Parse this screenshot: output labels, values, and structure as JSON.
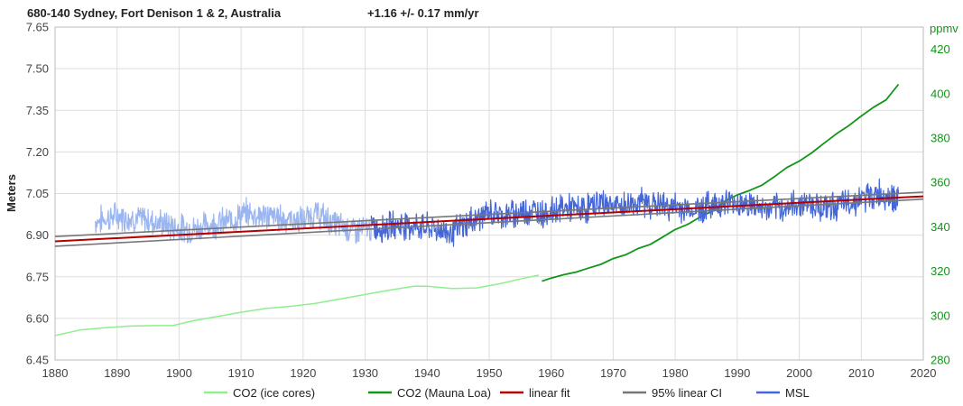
{
  "chart_data": {
    "type": "line",
    "title": "680-140 Sydney, Fort Denison 1 & 2, Australia",
    "trend_text": "+1.16 +/- 0.17 mm/yr",
    "ylabel": "Meters",
    "ylabel_right": "ppmv",
    "xlim": [
      1880,
      2020
    ],
    "ylim": [
      6.45,
      7.65
    ],
    "ylim_right": [
      280,
      430
    ],
    "x_ticks": [
      "1880",
      "1890",
      "1900",
      "1910",
      "1920",
      "1930",
      "1940",
      "1950",
      "1960",
      "1970",
      "1980",
      "1990",
      "2000",
      "2010",
      "2020"
    ],
    "y_ticks": [
      "6.45",
      "6.60",
      "6.75",
      "6.90",
      "7.05",
      "7.20",
      "7.35",
      "7.50",
      "7.65"
    ],
    "y_ticks_right": [
      "280",
      "300",
      "320",
      "340",
      "360",
      "380",
      "400",
      "420"
    ],
    "grid": true,
    "legend_position": "bottom",
    "colors": {
      "co2_ice": "#90ee90",
      "co2_mauna": "#109618",
      "linear_fit": "#b40000",
      "ci": "#777777",
      "msl_early": "#9ab5ef",
      "msl_late": "#4466d6"
    },
    "legend": [
      {
        "label": "CO2 (ice cores)",
        "color": "#90ee90"
      },
      {
        "label": "CO2 (Mauna Loa)",
        "color": "#109618"
      },
      {
        "label": "linear fit",
        "color": "#b40000"
      },
      {
        "label": "95% linear CI",
        "color": "#777777"
      },
      {
        "label": "MSL",
        "color": "#4466d6"
      }
    ],
    "series": [
      {
        "name": "CO2 (ice cores)",
        "axis": "right",
        "x": [
          1880,
          1884,
          1888,
          1892,
          1896,
          1899,
          1902,
          1906,
          1910,
          1914,
          1918,
          1922,
          1926,
          1930,
          1934,
          1938,
          1940,
          1944,
          1948,
          1952,
          1955,
          1958
        ],
        "y": [
          291,
          293.5,
          294.5,
          295.3,
          295.5,
          295.5,
          297.5,
          299.5,
          301.5,
          303.2,
          304.2,
          305.5,
          307.5,
          309.5,
          311.5,
          313.3,
          313.2,
          312.2,
          312.5,
          314.5,
          316.5,
          318.2
        ]
      },
      {
        "name": "CO2 (Mauna Loa)",
        "axis": "right",
        "x": [
          1958.5,
          1960,
          1962,
          1964,
          1966,
          1968,
          1970,
          1972,
          1974,
          1976,
          1978,
          1980,
          1982,
          1984,
          1986,
          1988,
          1990,
          1992,
          1994,
          1996,
          1998,
          2000,
          2002,
          2004,
          2006,
          2008,
          2010,
          2012,
          2014,
          2016
        ],
        "y": [
          315.5,
          316.9,
          318.4,
          319.6,
          321.4,
          323.1,
          325.7,
          327.4,
          330.2,
          332.1,
          335.4,
          338.8,
          341.1,
          344.4,
          347.2,
          351.6,
          354.4,
          356.4,
          358.8,
          362.6,
          366.7,
          369.6,
          373.3,
          377.7,
          381.9,
          385.6,
          389.9,
          393.9,
          397.2,
          404.2
        ]
      },
      {
        "name": "linear fit",
        "axis": "left",
        "x": [
          1880,
          2020
        ],
        "y": [
          6.8776,
          7.04
        ]
      },
      {
        "name": "95% linear CI upper",
        "axis": "left",
        "x": [
          1880,
          2020
        ],
        "y": [
          6.895,
          7.055
        ]
      },
      {
        "name": "95% linear CI lower",
        "axis": "left",
        "x": [
          1880,
          2020
        ],
        "y": [
          6.86,
          7.03
        ]
      },
      {
        "name": "MSL",
        "axis": "left",
        "x": [
          1886.5,
          1890,
          1893,
          1896,
          1899,
          1902,
          1905,
          1908,
          1911,
          1914,
          1917,
          1920,
          1922,
          1925,
          1928,
          1930,
          1933,
          1936,
          1939,
          1942,
          1944,
          1947,
          1950,
          1953,
          1956,
          1959,
          1962,
          1965,
          1968,
          1971,
          1974,
          1977,
          1980,
          1983,
          1986,
          1989,
          1992,
          1995,
          1998,
          2001,
          2004,
          2007,
          2010,
          2013,
          2016
        ],
        "y": [
          6.95,
          6.97,
          6.96,
          6.95,
          6.93,
          6.92,
          6.94,
          6.95,
          6.98,
          6.97,
          6.96,
          6.95,
          6.98,
          6.94,
          6.92,
          6.92,
          6.93,
          6.94,
          6.93,
          6.92,
          6.91,
          6.95,
          6.98,
          6.97,
          6.99,
          6.98,
          7.0,
          6.99,
          7.02,
          7.0,
          7.02,
          7.01,
          7.0,
          6.99,
          7.01,
          7.02,
          7.01,
          6.99,
          7.0,
          7.02,
          7.0,
          7.01,
          7.03,
          7.05,
          7.03
        ]
      }
    ]
  }
}
